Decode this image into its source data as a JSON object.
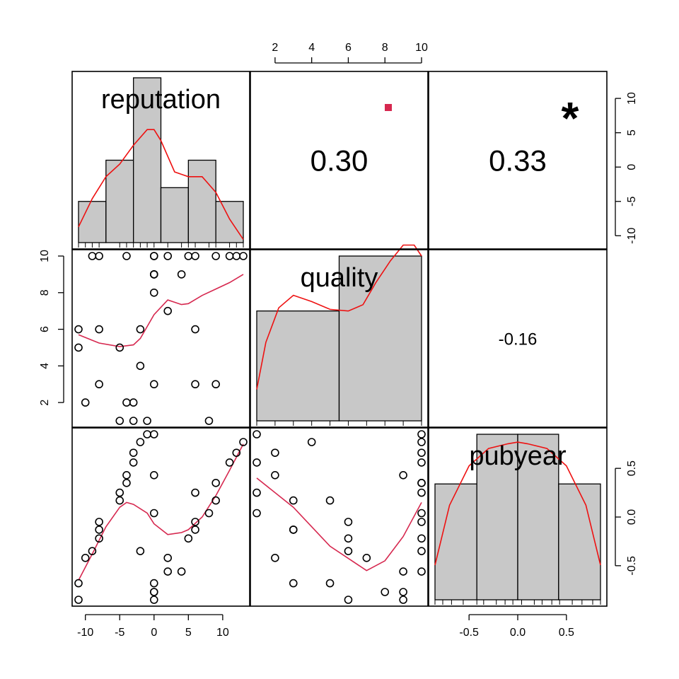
{
  "colors": {
    "density": "#ee1111",
    "smooth": "#d6284f",
    "star": "#d6284f",
    "bar": "#c8c8c8"
  },
  "chart_data": {
    "type": "scatter",
    "title": "",
    "variables": [
      "reputation",
      "quality",
      "pubyear"
    ],
    "axes": {
      "reputation": {
        "ticks": [
          -10,
          -5,
          0,
          5,
          10
        ],
        "tick_labels": [
          "-10",
          "-5",
          "0",
          "5",
          "10"
        ],
        "range": [
          -11,
          13
        ]
      },
      "quality": {
        "ticks": [
          2,
          4,
          6,
          8,
          10
        ],
        "tick_labels": [
          "2",
          "4",
          "6",
          "8",
          "10"
        ],
        "range": [
          1,
          10
        ]
      },
      "pubyear": {
        "ticks": [
          -0.5,
          0.0,
          0.5
        ],
        "tick_labels": [
          "-0.5",
          "0.0",
          "0.5"
        ],
        "range": [
          -0.85,
          0.85
        ]
      },
      "reputation_right": {
        "ticks": [
          -10,
          -5,
          0,
          5,
          10
        ],
        "tick_labels": [
          "-10",
          "-5",
          "0",
          "5",
          "10"
        ]
      }
    },
    "correlations": [
      {
        "pair": [
          "reputation",
          "quality"
        ],
        "label": "0.30",
        "stars": "."
      },
      {
        "pair": [
          "reputation",
          "pubyear"
        ],
        "label": "0.33",
        "stars": "*"
      },
      {
        "pair": [
          "quality",
          "pubyear"
        ],
        "label": "-0.16",
        "stars": ""
      }
    ],
    "histograms": {
      "reputation": {
        "breaks": [
          -11,
          -7,
          -3,
          1,
          5,
          9,
          13
        ],
        "counts": [
          3,
          6,
          12,
          4,
          6,
          3
        ]
      },
      "quality": {
        "breaks": [
          1,
          5.5,
          10
        ],
        "counts": [
          10,
          15
        ]
      },
      "pubyear": {
        "breaks": [
          -0.85,
          -0.42,
          0,
          0.42,
          0.85
        ],
        "counts": [
          7,
          10,
          10,
          7
        ]
      }
    },
    "points": {
      "reputation": [
        -11,
        -11,
        -10,
        -9,
        -8,
        -8,
        -8,
        -5,
        -5,
        -4,
        -4,
        -3,
        -3,
        -2,
        -2,
        -1,
        0,
        0,
        0,
        0,
        0,
        0,
        0,
        2,
        2,
        4,
        5,
        6,
        6,
        6,
        8,
        9,
        9,
        11,
        12,
        13
      ],
      "quality": [
        5,
        6,
        2,
        10,
        10,
        3,
        6,
        1,
        5,
        2,
        10,
        1,
        2,
        4,
        6,
        1,
        3,
        8,
        9,
        9,
        10,
        10,
        9,
        7,
        10,
        9,
        10,
        3,
        6,
        10,
        1,
        3,
        10,
        10,
        10,
        10
      ],
      "pubyear": [
        -0.68,
        -0.85,
        -0.42,
        -0.35,
        -0.05,
        -0.13,
        -0.22,
        0.25,
        0.17,
        0.43,
        0.35,
        0.56,
        0.66,
        0.77,
        -0.35,
        0.85,
        -0.68,
        -0.77,
        -0.77,
        -0.85,
        0.04,
        0.85,
        0.43,
        -0.42,
        -0.56,
        -0.56,
        -0.22,
        -0.13,
        -0.05,
        0.25,
        0.04,
        0.17,
        0.35,
        0.56,
        0.66,
        0.77
      ]
    },
    "smooth_curves": {
      "quality_vs_reputation": {
        "x": [
          -11,
          -8,
          -5,
          -3,
          -2,
          0,
          2,
          4,
          5,
          7,
          9,
          11,
          13
        ],
        "y": [
          5.7,
          5.25,
          5.05,
          5.15,
          5.5,
          6.8,
          7.6,
          7.35,
          7.4,
          7.85,
          8.2,
          8.55,
          9.0
        ]
      },
      "pubyear_vs_reputation": {
        "x": [
          -11,
          -9,
          -7,
          -5,
          -4,
          -3,
          -1,
          0,
          2,
          4,
          5,
          7,
          9,
          11,
          13
        ],
        "y": [
          -0.65,
          -0.38,
          -0.1,
          0.1,
          0.15,
          0.13,
          0.04,
          -0.07,
          -0.18,
          -0.16,
          -0.13,
          0.0,
          0.22,
          0.48,
          0.75
        ]
      },
      "pubyear_vs_quality": {
        "x": [
          1,
          3,
          5,
          7,
          8,
          9,
          10
        ],
        "y": [
          0.4,
          0.1,
          -0.3,
          -0.55,
          -0.45,
          -0.2,
          0.15
        ]
      }
    },
    "densities": {
      "reputation": {
        "x": [
          -11,
          -9,
          -7,
          -5,
          -3,
          -1,
          0,
          1,
          2,
          3,
          5,
          7,
          9,
          11,
          13
        ],
        "y": [
          0.1,
          0.28,
          0.42,
          0.5,
          0.62,
          0.72,
          0.72,
          0.65,
          0.55,
          0.45,
          0.42,
          0.42,
          0.32,
          0.15,
          0.02
        ]
      },
      "quality": {
        "x": [
          1,
          1.5,
          2.2,
          3,
          4,
          5,
          6,
          6.8,
          7.5,
          8.3,
          9,
          9.6,
          10
        ],
        "y": [
          0.2,
          0.5,
          0.72,
          0.8,
          0.76,
          0.71,
          0.7,
          0.74,
          0.88,
          1.02,
          1.12,
          1.12,
          1.05
        ]
      },
      "pubyear": {
        "x": [
          -0.85,
          -0.7,
          -0.5,
          -0.3,
          -0.1,
          0.0,
          0.1,
          0.3,
          0.5,
          0.7,
          0.85
        ],
        "y": [
          0.22,
          0.6,
          0.85,
          0.96,
          0.99,
          1.0,
          0.99,
          0.96,
          0.85,
          0.6,
          0.22
        ]
      }
    }
  }
}
